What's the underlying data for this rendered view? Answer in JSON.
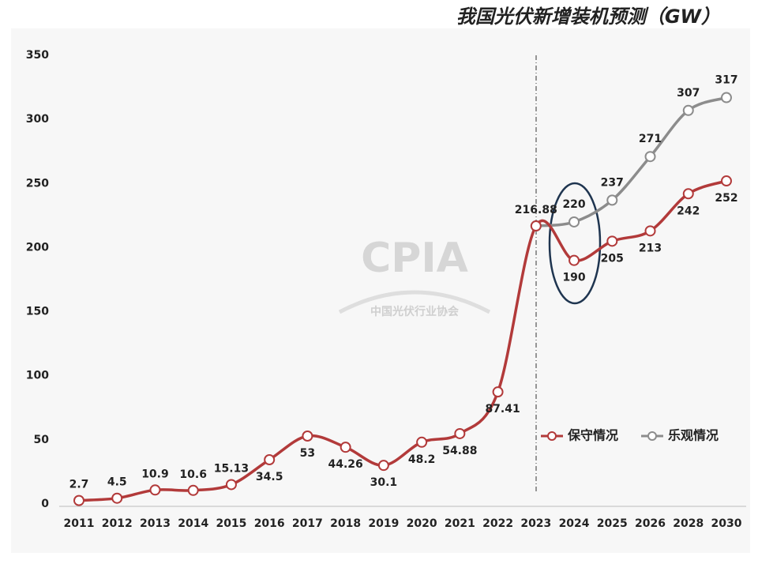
{
  "chart_data": {
    "type": "line",
    "title": "我国光伏新增装机预测（GW）",
    "watermark": {
      "text": "CPIA",
      "subtitle": "中国光伏行业协会"
    },
    "categories": [
      "2011",
      "2012",
      "2013",
      "2014",
      "2015",
      "2016",
      "2017",
      "2018",
      "2019",
      "2020",
      "2021",
      "2022",
      "2023",
      "2024",
      "2025",
      "2026",
      "2028",
      "2030"
    ],
    "series": [
      {
        "name": "保守情况",
        "color": "#b23a3a",
        "values": [
          2.7,
          4.5,
          10.9,
          10.6,
          15.13,
          34.5,
          53,
          44.26,
          30.1,
          48.2,
          54.88,
          87.41,
          216.88,
          190,
          205,
          213,
          242,
          252
        ]
      },
      {
        "name": "乐观情况",
        "color": "#8c8c8c",
        "values": [
          null,
          null,
          null,
          null,
          null,
          null,
          null,
          null,
          null,
          null,
          null,
          null,
          216.88,
          220,
          237,
          271,
          307,
          317
        ]
      }
    ],
    "ylim": [
      0,
      350
    ],
    "yticks": [
      0,
      50,
      100,
      150,
      200,
      250,
      300,
      350
    ],
    "legend": "lower-right"
  }
}
